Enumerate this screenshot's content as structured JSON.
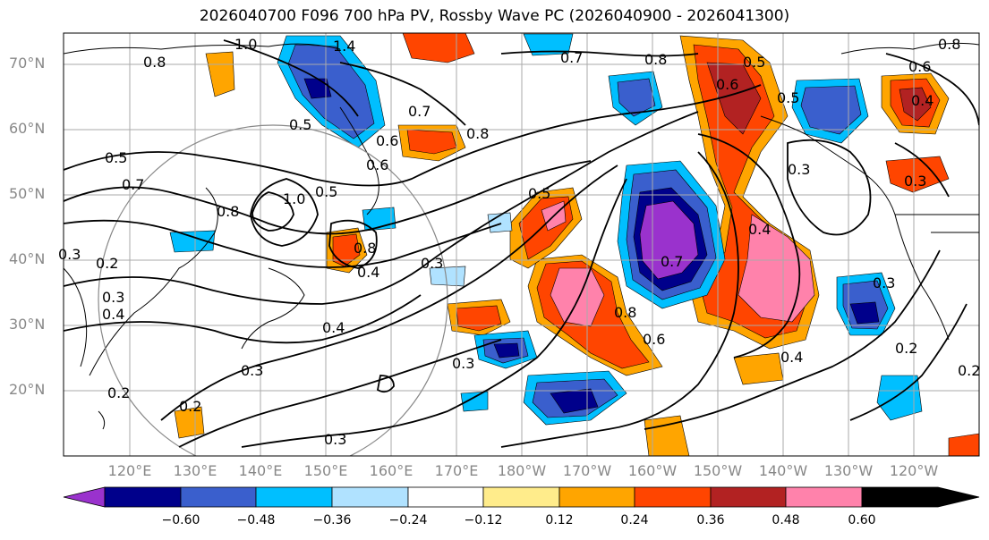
{
  "title": "2026040700 F096 700 hPa PV, Rossby Wave PC (2026040900 - 2026041300)",
  "axes": {
    "lat_labels": [
      "70°N",
      "60°N",
      "50°N",
      "40°N",
      "30°N",
      "20°N"
    ],
    "lon_labels": [
      "120°E",
      "130°E",
      "140°E",
      "150°E",
      "160°E",
      "170°E",
      "180°W",
      "170°W",
      "160°W",
      "150°W",
      "140°W",
      "130°W",
      "120°W"
    ]
  },
  "colorbar": {
    "ticks": [
      "−0.60",
      "−0.48",
      "−0.36",
      "−0.24",
      "−0.12",
      "0.12",
      "0.24",
      "0.36",
      "0.48",
      "0.60"
    ],
    "colors": [
      "#9a32cd",
      "#00008b",
      "#3a5fcd",
      "#00bfff",
      "#b0e2ff",
      "#ffffff",
      "#ffec8b",
      "#ffa500",
      "#ff4500",
      "#b22222",
      "#ff82ab"
    ]
  },
  "contour_labels": [
    "1.0",
    "1.4",
    "0.8",
    "0.7",
    "0.5",
    "0.6",
    "0.8",
    "0.5",
    "0.6",
    "0.5",
    "0.4",
    "0.8",
    "0.5",
    "0.7",
    "1.0",
    "0.8",
    "0.6",
    "0.8",
    "0.4",
    "0.3",
    "0.5",
    "0.7",
    "0.5",
    "0.8",
    "0.7",
    "0.3",
    "0.3",
    "0.4",
    "0.3",
    "0.2",
    "0.3",
    "0.6",
    "0.8",
    "0.6",
    "0.4",
    "0.3",
    "0.2",
    "0.2",
    "0.2",
    "0.3",
    "0.4",
    "0.2",
    "0.3",
    "0.3",
    "0.4"
  ]
}
